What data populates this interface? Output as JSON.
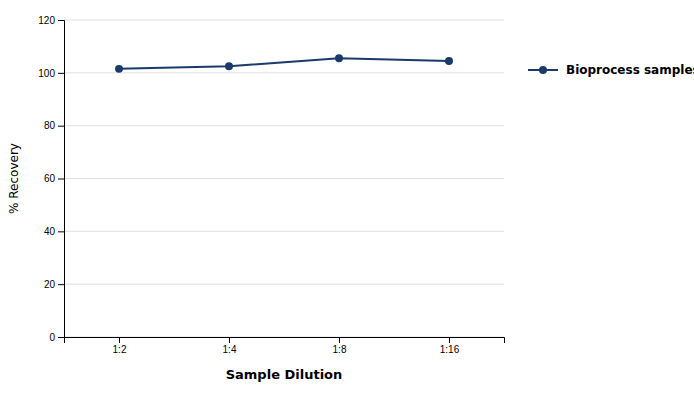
{
  "chart_data": {
    "type": "line",
    "xlabel": "Sample Dilution",
    "ylabel": "% Recovery",
    "categories": [
      "1:2",
      "1:4",
      "1:8",
      "1:16"
    ],
    "series": [
      {
        "name": "Bioprocess samples",
        "color": "#1a3a6b",
        "marker": "circle",
        "line_style": "solid",
        "values": [
          101.5,
          102.5,
          105.5,
          104.5
        ]
      }
    ],
    "ylim": [
      0,
      120
    ],
    "yticks": [
      0,
      20,
      40,
      60,
      80,
      100,
      120
    ],
    "grid": true,
    "legend": "right"
  }
}
